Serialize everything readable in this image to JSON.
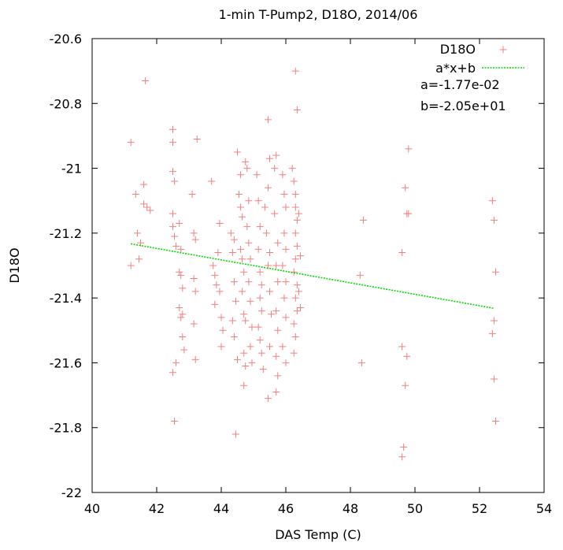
{
  "chart_data": {
    "type": "scatter",
    "title": "1-min T-Pump2, D18O, 2014/06",
    "xlabel": "DAS Temp (C)",
    "ylabel": "D18O",
    "xlim": [
      40,
      54
    ],
    "ylim": [
      -22,
      -20.6
    ],
    "xticks": [
      "40",
      "42",
      "44",
      "46",
      "48",
      "50",
      "52",
      "54"
    ],
    "yticks": [
      "-20.6",
      "-20.8",
      "-21",
      "-21.2",
      "-21.4",
      "-21.6",
      "-21.8",
      "-22"
    ],
    "grid": false,
    "legend_position": "top-right",
    "series": [
      {
        "name": "D18O",
        "type": "scatter",
        "marker": "plus",
        "color": "#f08080",
        "points": [
          [
            41.2,
            -20.92
          ],
          [
            41.2,
            -21.3
          ],
          [
            41.35,
            -21.08
          ],
          [
            41.4,
            -21.2
          ],
          [
            41.5,
            -21.23
          ],
          [
            41.45,
            -21.28
          ],
          [
            41.6,
            -21.11
          ],
          [
            41.6,
            -21.05
          ],
          [
            41.65,
            -20.73
          ],
          [
            41.7,
            -21.12
          ],
          [
            41.8,
            -21.13
          ],
          [
            42.5,
            -20.88
          ],
          [
            42.5,
            -20.92
          ],
          [
            42.5,
            -21.01
          ],
          [
            42.55,
            -21.04
          ],
          [
            42.5,
            -21.14
          ],
          [
            42.5,
            -21.18
          ],
          [
            42.55,
            -21.21
          ],
          [
            42.6,
            -21.24
          ],
          [
            42.5,
            -21.63
          ],
          [
            42.55,
            -21.78
          ],
          [
            42.6,
            -21.6
          ],
          [
            42.7,
            -21.17
          ],
          [
            42.75,
            -21.25
          ],
          [
            42.7,
            -21.32
          ],
          [
            42.75,
            -21.33
          ],
          [
            42.8,
            -21.37
          ],
          [
            42.7,
            -21.43
          ],
          [
            42.8,
            -21.45
          ],
          [
            42.75,
            -21.46
          ],
          [
            42.8,
            -21.52
          ],
          [
            42.85,
            -21.56
          ],
          [
            43.1,
            -21.08
          ],
          [
            43.15,
            -21.2
          ],
          [
            43.2,
            -21.22
          ],
          [
            43.15,
            -21.34
          ],
          [
            43.2,
            -21.38
          ],
          [
            43.15,
            -21.48
          ],
          [
            43.2,
            -21.59
          ],
          [
            43.25,
            -20.91
          ],
          [
            43.7,
            -21.04
          ],
          [
            43.75,
            -21.3
          ],
          [
            43.8,
            -21.33
          ],
          [
            43.85,
            -21.36
          ],
          [
            43.8,
            -21.42
          ],
          [
            43.9,
            -21.26
          ],
          [
            43.95,
            -21.38
          ],
          [
            44.0,
            -21.46
          ],
          [
            44.05,
            -21.5
          ],
          [
            44.0,
            -21.55
          ],
          [
            43.95,
            -21.17
          ],
          [
            44.3,
            -21.2
          ],
          [
            44.4,
            -21.22
          ],
          [
            44.35,
            -21.26
          ],
          [
            44.4,
            -21.35
          ],
          [
            44.45,
            -21.41
          ],
          [
            44.35,
            -21.47
          ],
          [
            44.4,
            -21.52
          ],
          [
            44.5,
            -21.59
          ],
          [
            44.5,
            -20.95
          ],
          [
            44.55,
            -21.08
          ],
          [
            44.6,
            -21.02
          ],
          [
            44.45,
            -21.82
          ],
          [
            44.6,
            -21.12
          ],
          [
            44.65,
            -21.15
          ],
          [
            44.6,
            -21.25
          ],
          [
            44.65,
            -21.28
          ],
          [
            44.7,
            -21.32
          ],
          [
            44.65,
            -21.38
          ],
          [
            44.7,
            -21.45
          ],
          [
            44.75,
            -21.47
          ],
          [
            44.7,
            -21.57
          ],
          [
            44.75,
            -21.61
          ],
          [
            44.7,
            -21.67
          ],
          [
            44.75,
            -20.98
          ],
          [
            44.8,
            -21.0
          ],
          [
            44.85,
            -21.1
          ],
          [
            44.8,
            -21.18
          ],
          [
            44.85,
            -21.23
          ],
          [
            44.9,
            -21.28
          ],
          [
            44.85,
            -21.35
          ],
          [
            44.9,
            -21.41
          ],
          [
            44.95,
            -21.49
          ],
          [
            44.9,
            -21.55
          ],
          [
            44.95,
            -21.6
          ],
          [
            45.1,
            -21.02
          ],
          [
            45.15,
            -21.1
          ],
          [
            45.2,
            -21.18
          ],
          [
            45.15,
            -21.25
          ],
          [
            45.2,
            -21.32
          ],
          [
            45.25,
            -21.36
          ],
          [
            45.2,
            -21.4
          ],
          [
            45.25,
            -21.44
          ],
          [
            45.15,
            -21.49
          ],
          [
            45.2,
            -21.53
          ],
          [
            45.25,
            -21.57
          ],
          [
            45.3,
            -21.62
          ],
          [
            45.35,
            -21.12
          ],
          [
            45.4,
            -21.2
          ],
          [
            45.45,
            -20.85
          ],
          [
            45.5,
            -20.97
          ],
          [
            45.45,
            -21.06
          ],
          [
            45.5,
            -21.26
          ],
          [
            45.45,
            -21.3
          ],
          [
            45.5,
            -21.38
          ],
          [
            45.55,
            -21.45
          ],
          [
            45.5,
            -21.55
          ],
          [
            45.45,
            -21.71
          ],
          [
            45.65,
            -21.0
          ],
          [
            45.7,
            -20.96
          ],
          [
            45.65,
            -21.14
          ],
          [
            45.75,
            -21.23
          ],
          [
            45.7,
            -21.3
          ],
          [
            45.75,
            -21.35
          ],
          [
            45.7,
            -21.44
          ],
          [
            45.75,
            -21.5
          ],
          [
            45.7,
            -21.58
          ],
          [
            45.75,
            -21.64
          ],
          [
            45.7,
            -21.69
          ],
          [
            45.9,
            -21.02
          ],
          [
            45.95,
            -21.08
          ],
          [
            46.0,
            -21.12
          ],
          [
            45.95,
            -21.2
          ],
          [
            46.0,
            -21.25
          ],
          [
            45.9,
            -21.3
          ],
          [
            46.0,
            -21.35
          ],
          [
            45.95,
            -21.4
          ],
          [
            46.0,
            -21.46
          ],
          [
            45.9,
            -21.55
          ],
          [
            46.0,
            -21.6
          ],
          [
            46.2,
            -21.0
          ],
          [
            46.25,
            -21.04
          ],
          [
            46.3,
            -21.08
          ],
          [
            46.3,
            -21.12
          ],
          [
            46.35,
            -21.16
          ],
          [
            46.3,
            -21.2
          ],
          [
            46.35,
            -21.24
          ],
          [
            46.3,
            -21.28
          ],
          [
            46.25,
            -21.32
          ],
          [
            46.35,
            -21.36
          ],
          [
            46.3,
            -21.4
          ],
          [
            46.35,
            -21.44
          ],
          [
            46.25,
            -21.48
          ],
          [
            46.3,
            -21.52
          ],
          [
            46.25,
            -21.57
          ],
          [
            46.3,
            -20.7
          ],
          [
            46.35,
            -20.82
          ],
          [
            46.4,
            -21.14
          ],
          [
            46.45,
            -21.27
          ],
          [
            46.4,
            -21.38
          ],
          [
            46.45,
            -21.43
          ],
          [
            48.3,
            -21.33
          ],
          [
            48.4,
            -21.16
          ],
          [
            48.35,
            -21.6
          ],
          [
            49.6,
            -21.26
          ],
          [
            49.6,
            -21.55
          ],
          [
            49.6,
            -21.89
          ],
          [
            49.65,
            -21.86
          ],
          [
            49.7,
            -21.06
          ],
          [
            49.7,
            -21.67
          ],
          [
            49.75,
            -21.14
          ],
          [
            49.8,
            -20.94
          ],
          [
            49.8,
            -21.14
          ],
          [
            49.75,
            -21.58
          ],
          [
            52.4,
            -21.1
          ],
          [
            52.45,
            -21.16
          ],
          [
            52.5,
            -21.32
          ],
          [
            52.45,
            -21.47
          ],
          [
            52.4,
            -21.51
          ],
          [
            52.45,
            -21.65
          ],
          [
            52.5,
            -21.78
          ]
        ]
      },
      {
        "name": "a*x+b",
        "type": "line",
        "color": "#00dd00",
        "dash": "dotted",
        "x": [
          41.2,
          52.45
        ],
        "y": [
          -21.233,
          -21.432
        ]
      }
    ],
    "annotations": [
      "a=-1.77e-02",
      "b=-2.05e+01"
    ]
  }
}
